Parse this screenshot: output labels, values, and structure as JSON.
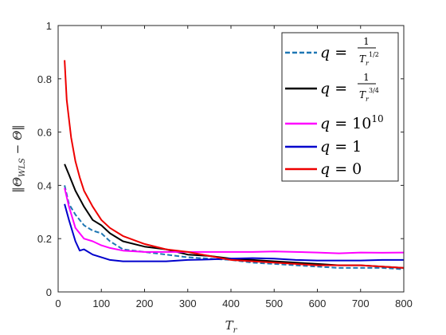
{
  "chart_data": {
    "type": "line",
    "title": "",
    "xlabel": "T_r",
    "ylabel": "||Θ_WLS − Θ||",
    "xlim": [
      0,
      800
    ],
    "ylim": [
      0,
      1
    ],
    "xticks": [
      "0",
      "100",
      "200",
      "300",
      "400",
      "500",
      "600",
      "700",
      "800"
    ],
    "yticks": [
      "0",
      "0.2",
      "0.4",
      "0.6",
      "0.8",
      "1"
    ],
    "grid": false,
    "legend_position": "top-right",
    "series": [
      {
        "name": "q = 1/T_r^(1/2)",
        "color": "#1f77b4",
        "dash": true,
        "x": [
          15,
          25,
          40,
          60,
          80,
          100,
          120,
          150,
          200,
          250,
          300,
          350,
          400,
          450,
          500,
          550,
          600,
          650,
          700,
          750,
          800
        ],
        "y": [
          0.4,
          0.33,
          0.29,
          0.25,
          0.23,
          0.22,
          0.19,
          0.16,
          0.15,
          0.14,
          0.13,
          0.125,
          0.12,
          0.11,
          0.105,
          0.1,
          0.095,
          0.09,
          0.09,
          0.09,
          0.085
        ]
      },
      {
        "name": "q = 1/T_r^(3/4)",
        "color": "#000000",
        "dash": false,
        "x": [
          15,
          25,
          40,
          60,
          80,
          100,
          120,
          150,
          200,
          250,
          300,
          350,
          400,
          450,
          500,
          550,
          600,
          650,
          700,
          750,
          800
        ],
        "y": [
          0.48,
          0.44,
          0.38,
          0.32,
          0.27,
          0.25,
          0.22,
          0.19,
          0.17,
          0.16,
          0.14,
          0.135,
          0.125,
          0.12,
          0.115,
          0.11,
          0.105,
          0.1,
          0.1,
          0.095,
          0.09
        ]
      },
      {
        "name": "q = 10^10",
        "color": "#ff00ff",
        "dash": false,
        "x": [
          15,
          25,
          40,
          60,
          80,
          100,
          120,
          150,
          200,
          250,
          300,
          350,
          400,
          450,
          500,
          550,
          600,
          650,
          700,
          750,
          800
        ],
        "y": [
          0.39,
          0.32,
          0.24,
          0.2,
          0.19,
          0.175,
          0.165,
          0.155,
          0.15,
          0.15,
          0.15,
          0.15,
          0.15,
          0.15,
          0.152,
          0.15,
          0.148,
          0.145,
          0.148,
          0.147,
          0.148
        ]
      },
      {
        "name": "q = 1",
        "color": "#0000cc",
        "dash": false,
        "x": [
          15,
          25,
          40,
          50,
          60,
          80,
          100,
          120,
          150,
          200,
          250,
          300,
          350,
          400,
          450,
          500,
          550,
          600,
          650,
          700,
          750,
          800
        ],
        "y": [
          0.33,
          0.27,
          0.19,
          0.155,
          0.16,
          0.14,
          0.13,
          0.12,
          0.115,
          0.115,
          0.115,
          0.12,
          0.122,
          0.125,
          0.127,
          0.125,
          0.12,
          0.118,
          0.118,
          0.118,
          0.12,
          0.12
        ]
      },
      {
        "name": "q = 0",
        "color": "#ee0000",
        "dash": false,
        "x": [
          15,
          20,
          30,
          40,
          50,
          60,
          80,
          100,
          120,
          150,
          200,
          250,
          300,
          350,
          400,
          450,
          500,
          550,
          600,
          650,
          700,
          750,
          800
        ],
        "y": [
          0.87,
          0.72,
          0.58,
          0.49,
          0.43,
          0.38,
          0.32,
          0.27,
          0.24,
          0.21,
          0.18,
          0.16,
          0.15,
          0.135,
          0.12,
          0.115,
          0.11,
          0.105,
          0.1,
          0.1,
          0.1,
          0.095,
          0.09
        ]
      }
    ]
  }
}
